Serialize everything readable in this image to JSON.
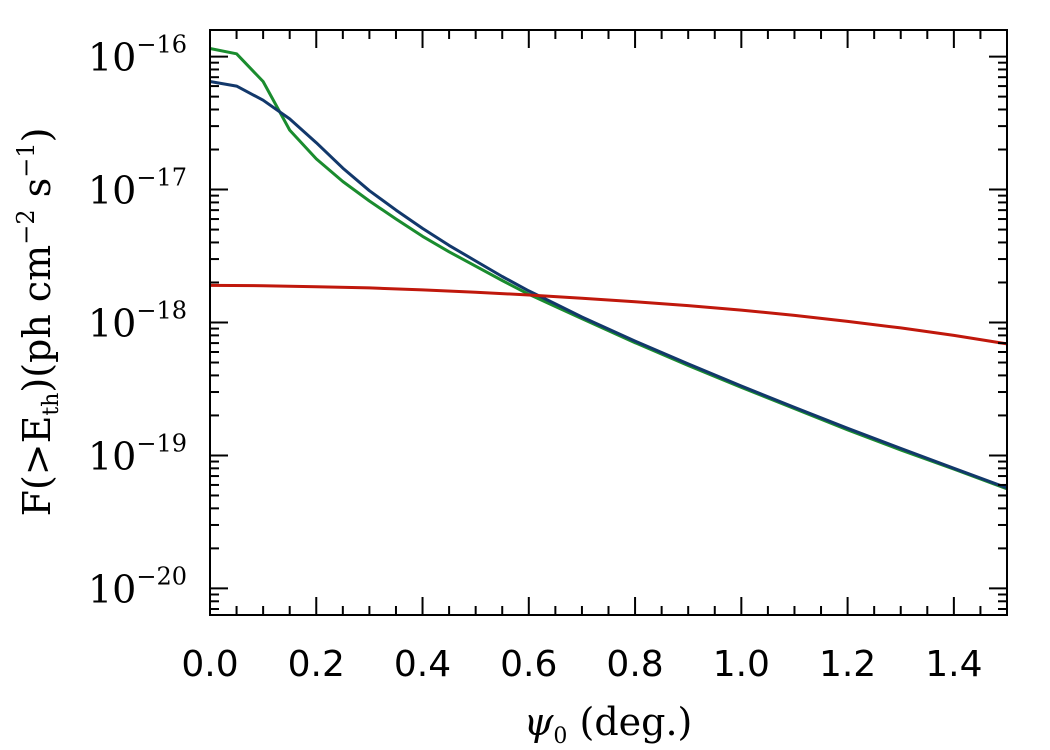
{
  "chart_data": {
    "type": "line",
    "xlabel": {
      "symbol": "ψ",
      "subscript": "0",
      "text": " (deg.)"
    },
    "ylabel": {
      "part1": "F(>E",
      "sub": "th",
      "part2": ")(ph cm",
      "sup1": "−2",
      "part3": " s",
      "sup2": "−1",
      "part4": ")"
    },
    "xlim": [
      0.0,
      1.5
    ],
    "ylim_log10": [
      -20.2,
      -15.8
    ],
    "yscale": "log",
    "x_ticks": [
      "0.0",
      "0.2",
      "0.4",
      "0.6",
      "0.8",
      "1.0",
      "1.2",
      "1.4"
    ],
    "y_ticks": [
      {
        "base": "10",
        "exp": "−16"
      },
      {
        "base": "10",
        "exp": "−17"
      },
      {
        "base": "10",
        "exp": "−18"
      },
      {
        "base": "10",
        "exp": "−19"
      },
      {
        "base": "10",
        "exp": "−20"
      }
    ],
    "series": [
      {
        "color": "#1a8c2e",
        "x": [
          0.0,
          0.05,
          0.1,
          0.15,
          0.2,
          0.25,
          0.3,
          0.35,
          0.4,
          0.45,
          0.5,
          0.55,
          0.6,
          0.65,
          0.7,
          0.8,
          0.9,
          1.0,
          1.1,
          1.2,
          1.3,
          1.4,
          1.5
        ],
        "y": [
          1.15e-16,
          1.05e-16,
          6.5e-17,
          2.8e-17,
          1.7e-17,
          1.15e-17,
          8.2e-18,
          6e-18,
          4.45e-18,
          3.4e-18,
          2.65e-18,
          2.07e-18,
          1.63e-18,
          1.32e-18,
          1.07e-18,
          7.05e-19,
          4.75e-19,
          3.25e-19,
          2.25e-19,
          1.56e-19,
          1.1e-19,
          7.9e-20,
          5.6e-20
        ]
      },
      {
        "color": "#12386b",
        "x": [
          0.0,
          0.05,
          0.1,
          0.15,
          0.2,
          0.25,
          0.3,
          0.35,
          0.4,
          0.45,
          0.5,
          0.55,
          0.6,
          0.65,
          0.7,
          0.8,
          0.9,
          1.0,
          1.1,
          1.2,
          1.3,
          1.4,
          1.5
        ],
        "y": [
          6.5e-17,
          6e-17,
          4.7e-17,
          3.4e-17,
          2.25e-17,
          1.45e-17,
          9.8e-18,
          7e-18,
          5.1e-18,
          3.8e-18,
          2.9e-18,
          2.22e-18,
          1.73e-18,
          1.38e-18,
          1.1e-18,
          7.25e-19,
          4.88e-19,
          3.33e-19,
          2.3e-19,
          1.6e-19,
          1.13e-19,
          8e-20,
          5.7e-20
        ]
      },
      {
        "color": "#c0180c",
        "x": [
          0.0,
          0.1,
          0.2,
          0.3,
          0.4,
          0.5,
          0.6,
          0.7,
          0.8,
          0.9,
          1.0,
          1.1,
          1.2,
          1.3,
          1.4,
          1.5
        ],
        "y": [
          1.9e-18,
          1.89e-18,
          1.86e-18,
          1.82e-18,
          1.76e-18,
          1.69e-18,
          1.61e-18,
          1.52e-18,
          1.43e-18,
          1.34e-18,
          1.24e-18,
          1.13e-18,
          1.02e-18,
          9.1e-19,
          8e-19,
          6.9e-19
        ]
      }
    ]
  }
}
